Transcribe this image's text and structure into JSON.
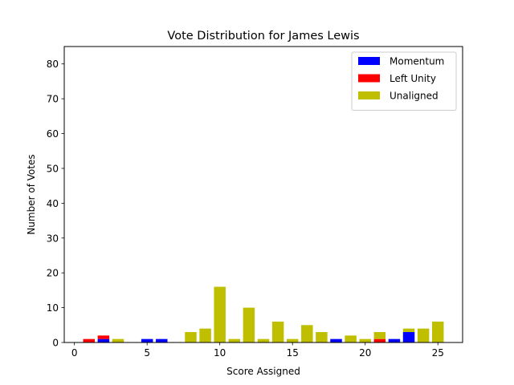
{
  "chart_data": {
    "type": "bar",
    "stacked": true,
    "title": "Vote Distribution for James Lewis",
    "xlabel": "Score Assigned",
    "ylabel": "Number of Votes",
    "xlim": [
      -0.7,
      26.7
    ],
    "ylim": [
      0,
      85
    ],
    "xticks": [
      0,
      5,
      10,
      15,
      20,
      25
    ],
    "yticks": [
      0,
      10,
      20,
      30,
      40,
      50,
      60,
      70,
      80
    ],
    "x": [
      0,
      1,
      2,
      3,
      4,
      5,
      6,
      7,
      8,
      9,
      10,
      11,
      12,
      13,
      14,
      15,
      16,
      17,
      18,
      19,
      20,
      21,
      22,
      23,
      24,
      25
    ],
    "series": [
      {
        "name": "Momentum",
        "color": "#0000ff",
        "values": [
          0,
          0,
          1,
          0,
          0,
          1,
          1,
          0,
          0,
          0,
          0,
          0,
          0,
          0,
          0,
          0,
          0,
          0,
          1,
          0,
          0,
          0,
          1,
          3,
          0,
          0
        ]
      },
      {
        "name": "Left Unity",
        "color": "#ff0000",
        "values": [
          0,
          1,
          1,
          0,
          0,
          0,
          0,
          0,
          0,
          0,
          0,
          0,
          0,
          0,
          0,
          0,
          0,
          0,
          0,
          0,
          0,
          1,
          0,
          0,
          0,
          0
        ]
      },
      {
        "name": "Unaligned",
        "color": "#bfbf00",
        "values": [
          0,
          0,
          0,
          1,
          0,
          0,
          0,
          0,
          3,
          4,
          16,
          1,
          10,
          1,
          6,
          1,
          5,
          3,
          0,
          2,
          1,
          2,
          0,
          1,
          4,
          6
        ]
      }
    ],
    "legend": {
      "position": "top-right",
      "entries": [
        "Momentum",
        "Left Unity",
        "Unaligned"
      ]
    }
  }
}
